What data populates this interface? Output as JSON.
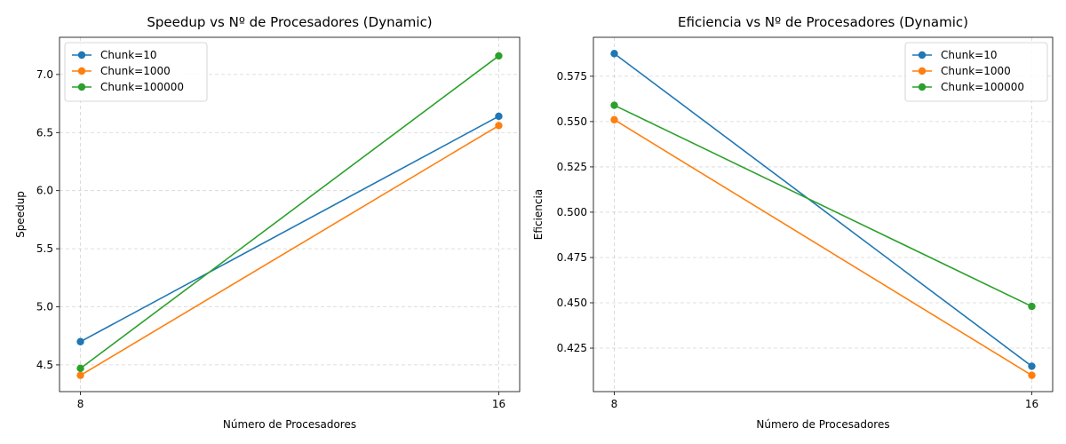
{
  "chart_data": [
    {
      "type": "line",
      "title": "Speedup vs Nº de Procesadores (Dynamic)",
      "xlabel": "Número de Procesadores",
      "ylabel": "Speedup",
      "x": [
        8,
        16
      ],
      "x_ticks": [
        "8",
        "16"
      ],
      "xlim": [
        7.6,
        16.4
      ],
      "ylim": [
        4.27,
        7.32
      ],
      "y_ticks": [
        4.5,
        5.0,
        5.5,
        6.0,
        6.5,
        7.0
      ],
      "y_tick_labels": [
        "4.5",
        "5.0",
        "5.5",
        "6.0",
        "6.5",
        "7.0"
      ],
      "grid": true,
      "legend_position": "upper left",
      "series": [
        {
          "name": "Chunk=10",
          "values": [
            4.7,
            6.64
          ],
          "color": "#1f77b4"
        },
        {
          "name": "Chunk=1000",
          "values": [
            4.41,
            6.56
          ],
          "color": "#ff7f0e"
        },
        {
          "name": "Chunk=100000",
          "values": [
            4.47,
            7.16
          ],
          "color": "#2ca02c"
        }
      ]
    },
    {
      "type": "line",
      "title": "Eficiencia vs Nº de Procesadores (Dynamic)",
      "xlabel": "Número de Procesadores",
      "ylabel": "Eficiencia",
      "x": [
        8,
        16
      ],
      "x_ticks": [
        "8",
        "16"
      ],
      "xlim": [
        7.6,
        16.4
      ],
      "ylim": [
        0.401,
        0.5965
      ],
      "y_ticks": [
        0.425,
        0.45,
        0.475,
        0.5,
        0.525,
        0.55,
        0.575
      ],
      "y_tick_labels": [
        "0.425",
        "0.450",
        "0.475",
        "0.500",
        "0.525",
        "0.550",
        "0.575"
      ],
      "grid": true,
      "legend_position": "upper right",
      "series": [
        {
          "name": "Chunk=10",
          "values": [
            0.5875,
            0.415
          ],
          "color": "#1f77b4"
        },
        {
          "name": "Chunk=1000",
          "values": [
            0.551,
            0.41
          ],
          "color": "#ff7f0e"
        },
        {
          "name": "Chunk=100000",
          "values": [
            0.559,
            0.448
          ],
          "color": "#2ca02c"
        }
      ]
    }
  ]
}
